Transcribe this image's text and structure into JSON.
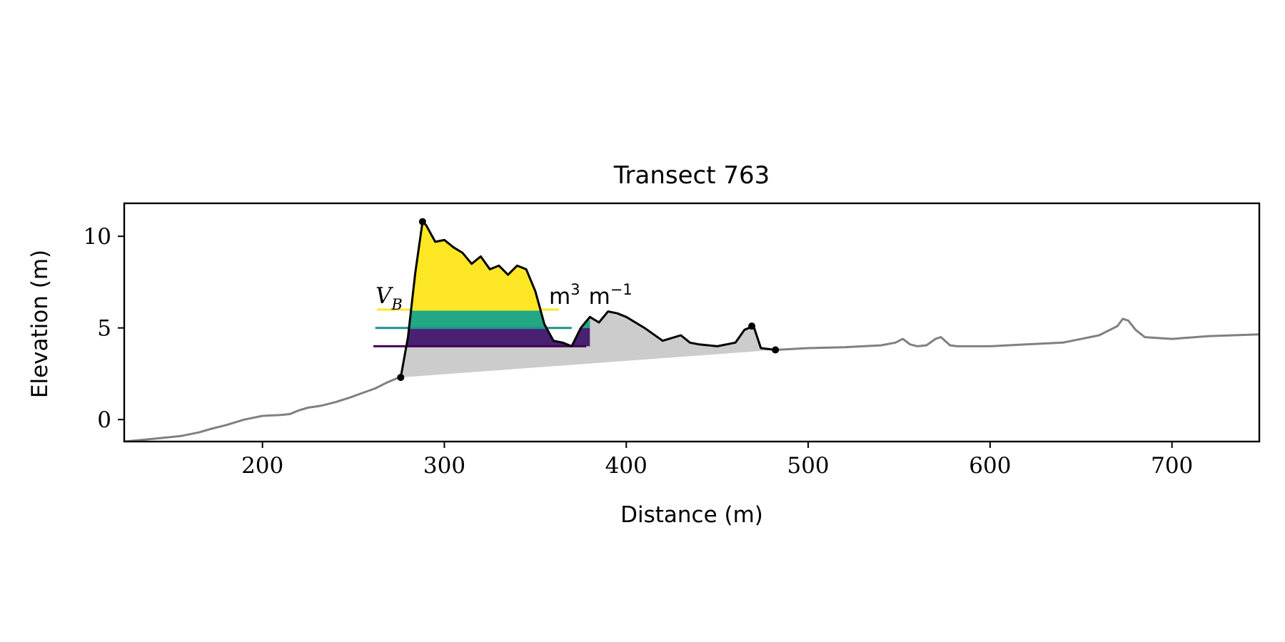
{
  "chart_data": {
    "type": "line",
    "title": "Transect 763",
    "xlabel": "Distance (m)",
    "ylabel": "Elevation (m)",
    "xlim": [
      124,
      748
    ],
    "ylim": [
      -1.2,
      11.8
    ],
    "xticks": [
      200,
      300,
      400,
      500,
      600,
      700
    ],
    "yticks": [
      0,
      5,
      10
    ],
    "grid": false,
    "legend": "none",
    "annotation_text": "V",
    "annotation_subscript": "B",
    "annotation_unit": "m",
    "annotation_unit_exp1": "3",
    "annotation_unit_exp2": "−1",
    "colors": {
      "profile": "#808080",
      "dune_profile": "#000000",
      "dune_fill": "#cccccc",
      "level_high": "#fde725",
      "level_mid": "#21918c",
      "level_low": "#440154",
      "band_high": "#fde725",
      "band_mid": "#22a884",
      "band_low": "#482173"
    },
    "series": [
      {
        "role": "full_profile",
        "x": [
          124,
          135,
          145,
          155,
          165,
          172,
          180,
          190,
          200,
          210,
          215,
          220,
          225,
          232,
          240,
          248,
          255,
          262,
          268,
          275
        ],
        "y": [
          -1.2,
          -1.1,
          -1.0,
          -0.9,
          -0.7,
          -0.5,
          -0.3,
          0.0,
          0.2,
          0.25,
          0.3,
          0.5,
          0.65,
          0.75,
          0.95,
          1.2,
          1.45,
          1.7,
          2.0,
          2.3
        ]
      },
      {
        "role": "full_profile_landward",
        "x": [
          482,
          500,
          520,
          540,
          548,
          552,
          556,
          560,
          565,
          570,
          573,
          578,
          582,
          600,
          620,
          640,
          660,
          670,
          673,
          676,
          680,
          685,
          700,
          720,
          748
        ],
        "y": [
          3.8,
          3.9,
          3.95,
          4.05,
          4.2,
          4.4,
          4.1,
          4.0,
          4.05,
          4.4,
          4.5,
          4.05,
          4.0,
          4.0,
          4.1,
          4.2,
          4.6,
          5.1,
          5.5,
          5.4,
          4.9,
          4.5,
          4.4,
          4.55,
          4.65
        ]
      },
      {
        "role": "dune_profile",
        "x": [
          276,
          280,
          284,
          288,
          290,
          295,
          300,
          305,
          310,
          315,
          320,
          325,
          330,
          335,
          340,
          345,
          350,
          355,
          360,
          365,
          370,
          375,
          380,
          385,
          390,
          395,
          400,
          405,
          410,
          420,
          430,
          435,
          440,
          450,
          460,
          465,
          470,
          474,
          482
        ],
        "y": [
          2.3,
          4.5,
          8.0,
          10.8,
          10.6,
          9.7,
          9.8,
          9.4,
          9.1,
          8.5,
          8.9,
          8.2,
          8.4,
          7.9,
          8.4,
          8.2,
          7.0,
          5.2,
          4.3,
          4.2,
          4.0,
          5.0,
          5.6,
          5.3,
          5.9,
          5.8,
          5.6,
          5.3,
          5.0,
          4.3,
          4.6,
          4.2,
          4.1,
          4.0,
          4.2,
          4.9,
          5.1,
          3.9,
          3.8
        ]
      }
    ],
    "points": [
      {
        "x": 276,
        "y": 2.3
      },
      {
        "x": 288,
        "y": 10.8
      },
      {
        "x": 469,
        "y": 5.1
      },
      {
        "x": 482,
        "y": 3.8
      }
    ],
    "levels": [
      {
        "y": 6.0,
        "x_start": 263,
        "x_end": 363
      },
      {
        "y": 5.0,
        "x_start": 262,
        "x_end": 370
      },
      {
        "y": 4.0,
        "x_start": 261,
        "x_end": 378
      }
    ]
  }
}
